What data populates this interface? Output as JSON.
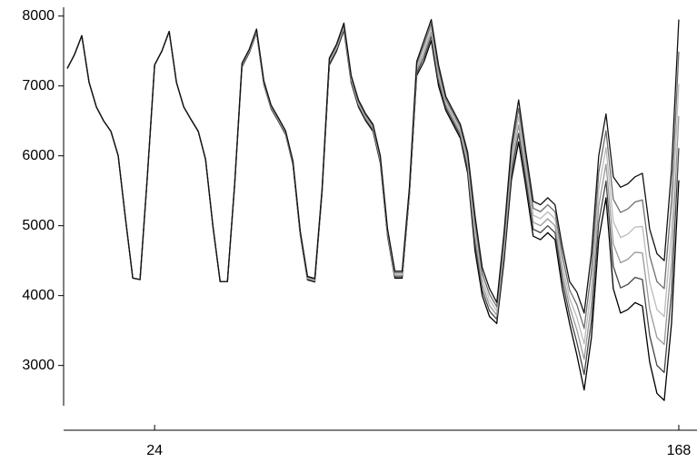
{
  "chart_data": {
    "type": "line",
    "x": [
      0,
      2,
      4,
      6,
      8,
      10,
      12,
      14,
      16,
      18,
      20,
      22,
      24,
      26,
      28,
      30,
      32,
      34,
      36,
      38,
      40,
      42,
      44,
      46,
      48,
      50,
      52,
      54,
      56,
      58,
      60,
      62,
      64,
      66,
      68,
      70,
      72,
      74,
      76,
      78,
      80,
      82,
      84,
      86,
      88,
      90,
      92,
      94,
      96,
      98,
      100,
      102,
      104,
      106,
      108,
      110,
      112,
      114,
      116,
      118,
      120,
      122,
      124,
      126,
      128,
      130,
      132,
      134,
      136,
      138,
      140,
      142,
      144,
      146,
      148,
      150,
      152,
      154,
      156,
      158,
      160,
      162,
      164,
      166,
      168
    ],
    "series": [
      {
        "color": "#000000",
        "values": [
          7250,
          7450,
          7720,
          7050,
          6700,
          6500,
          6350,
          6000,
          5100,
          4250,
          4230,
          5700,
          7300,
          7500,
          7780,
          7050,
          6700,
          6520,
          6350,
          5950,
          5000,
          4200,
          4200,
          5600,
          7275,
          7475,
          7765,
          7025,
          6675,
          6495,
          6305,
          5875,
          4875,
          4225,
          4195,
          5475,
          7300,
          7500,
          7800,
          7050,
          6700,
          6500,
          6350,
          5900,
          4850,
          4250,
          4250,
          5450,
          7150,
          7350,
          7650,
          7000,
          6650,
          6450,
          6250,
          5750,
          4650,
          4000,
          3700,
          3600,
          4500,
          5650,
          6200,
          5550,
          4850,
          4800,
          4900,
          4800,
          4100,
          3600,
          3150,
          2650,
          3400,
          4800,
          5400,
          4100,
          3750,
          3800,
          3900,
          3850,
          3050,
          2600,
          2500,
          3600,
          5650
        ]
      },
      {
        "color": "#444444",
        "values": [
          7250,
          7450,
          7720,
          7050,
          6700,
          6500,
          6350,
          6000,
          5100,
          4250,
          4230,
          5700,
          7300,
          7500,
          7780,
          7050,
          6700,
          6520,
          6350,
          5950,
          5000,
          4200,
          4200,
          5600,
          7285,
          7485,
          7775,
          7035,
          6685,
          6505,
          6315,
          5885,
          4885,
          4235,
          4205,
          5485,
          7320,
          7520,
          7820,
          7070,
          6720,
          6520,
          6370,
          5920,
          4870,
          4270,
          4270,
          5470,
          7190,
          7410,
          7710,
          7060,
          6690,
          6490,
          6290,
          5810,
          4750,
          4080,
          3780,
          3660,
          4580,
          5750,
          6320,
          5650,
          4950,
          4900,
          5000,
          4900,
          4220,
          3720,
          3330,
          2870,
          3640,
          5040,
          5640,
          4420,
          4110,
          4160,
          4260,
          4230,
          3430,
          3000,
          2900,
          4040,
          6110
        ]
      },
      {
        "color": "#999999",
        "values": [
          7250,
          7450,
          7720,
          7050,
          6700,
          6500,
          6350,
          6000,
          5100,
          4250,
          4230,
          5700,
          7300,
          7500,
          7780,
          7050,
          6700,
          6520,
          6350,
          5950,
          5000,
          4200,
          4200,
          5600,
          7295,
          7495,
          7785,
          7045,
          6695,
          6515,
          6325,
          5895,
          4895,
          4245,
          4215,
          5495,
          7340,
          7540,
          7840,
          7090,
          6740,
          6540,
          6390,
          5940,
          4890,
          4290,
          4290,
          5490,
          7230,
          7470,
          7770,
          7120,
          6730,
          6530,
          6330,
          5870,
          4850,
          4160,
          3860,
          3720,
          4660,
          5850,
          6440,
          5750,
          5050,
          5000,
          5100,
          5000,
          4340,
          3840,
          3510,
          3090,
          3880,
          5280,
          5880,
          4740,
          4470,
          4520,
          4620,
          4610,
          3810,
          3400,
          3300,
          4480,
          6570
        ]
      },
      {
        "color": "#bbbbbb",
        "values": [
          7250,
          7450,
          7720,
          7050,
          6700,
          6500,
          6350,
          6000,
          5100,
          4250,
          4230,
          5700,
          7300,
          7500,
          7780,
          7050,
          6700,
          6520,
          6350,
          5950,
          5000,
          4200,
          4200,
          5600,
          7305,
          7505,
          7795,
          7055,
          6705,
          6525,
          6335,
          5905,
          4905,
          4255,
          4225,
          5505,
          7360,
          7560,
          7860,
          7110,
          6760,
          6560,
          6410,
          5960,
          4910,
          4310,
          4310,
          5510,
          7270,
          7530,
          7830,
          7180,
          6770,
          6570,
          6370,
          5930,
          4950,
          4240,
          3940,
          3780,
          4740,
          5950,
          6560,
          5850,
          5150,
          5100,
          5200,
          5100,
          4460,
          3960,
          3690,
          3310,
          4120,
          5520,
          6120,
          5060,
          4830,
          4880,
          4980,
          4990,
          4190,
          3800,
          3700,
          4920,
          7030
        ]
      },
      {
        "color": "#6e6e6e",
        "values": [
          7250,
          7450,
          7720,
          7050,
          6700,
          6500,
          6350,
          6000,
          5100,
          4250,
          4230,
          5700,
          7300,
          7500,
          7780,
          7050,
          6700,
          6520,
          6350,
          5950,
          5000,
          4200,
          4200,
          5600,
          7315,
          7515,
          7805,
          7065,
          6715,
          6535,
          6345,
          5915,
          4915,
          4265,
          4235,
          5515,
          7380,
          7580,
          7880,
          7130,
          6780,
          6580,
          6430,
          5980,
          4930,
          4330,
          4330,
          5530,
          7310,
          7590,
          7890,
          7240,
          6810,
          6610,
          6410,
          5990,
          5050,
          4320,
          4020,
          3840,
          4820,
          6050,
          6680,
          5950,
          5250,
          5200,
          5300,
          5200,
          4580,
          4080,
          3870,
          3530,
          4360,
          5760,
          6360,
          5380,
          5190,
          5240,
          5340,
          5370,
          4570,
          4200,
          4100,
          5360,
          7490
        ]
      },
      {
        "color": "#111111",
        "values": [
          7250,
          7450,
          7720,
          7050,
          6700,
          6500,
          6350,
          6000,
          5100,
          4250,
          4230,
          5700,
          7300,
          7500,
          7780,
          7050,
          6700,
          6520,
          6350,
          5950,
          5000,
          4200,
          4200,
          5600,
          7325,
          7525,
          7815,
          7075,
          6725,
          6545,
          6355,
          5925,
          4925,
          4275,
          4245,
          5525,
          7400,
          7600,
          7900,
          7150,
          6800,
          6600,
          6450,
          6000,
          4950,
          4350,
          4350,
          5550,
          7350,
          7650,
          7950,
          7300,
          6850,
          6650,
          6450,
          6050,
          5150,
          4400,
          4100,
          3900,
          4900,
          6150,
          6800,
          6050,
          5350,
          5300,
          5400,
          5300,
          4700,
          4200,
          4050,
          3750,
          4600,
          6000,
          6600,
          5700,
          5550,
          5600,
          5700,
          5750,
          4950,
          4600,
          4500,
          5800,
          7950
        ]
      }
    ],
    "xlim": [
      -1,
      173
    ],
    "xticks": [
      24,
      168
    ],
    "ylim": [
      2450,
      8100
    ],
    "yticks": [
      3000,
      4000,
      5000,
      6000,
      7000,
      8000
    ]
  }
}
